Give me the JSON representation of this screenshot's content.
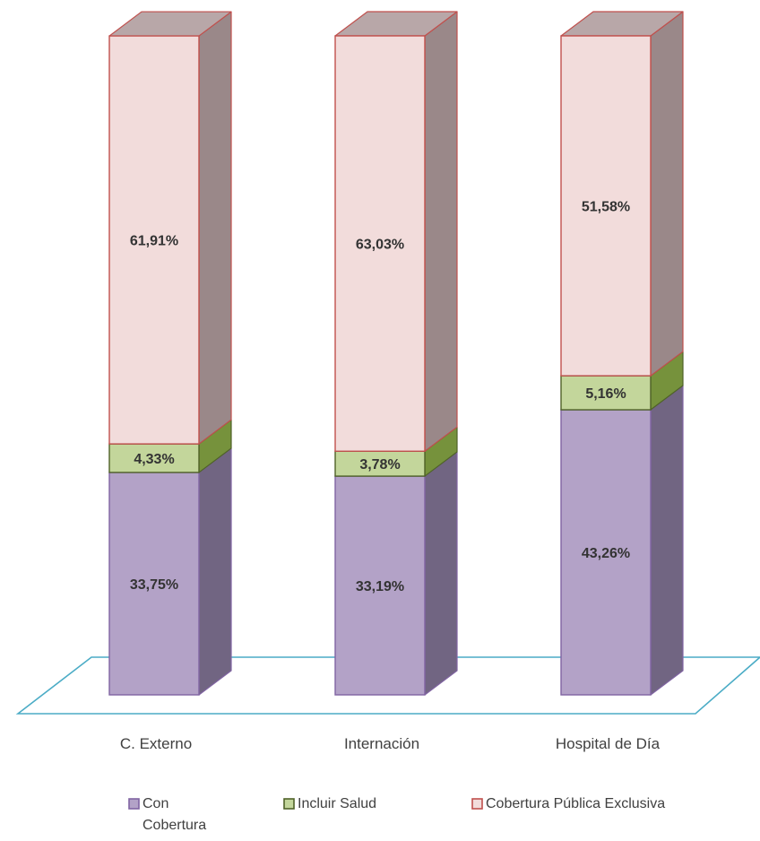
{
  "chart_data": {
    "type": "bar",
    "stacked": true,
    "three_d": true,
    "categories": [
      "C. Externo",
      "Internación",
      "Hospital de Día"
    ],
    "series": [
      {
        "name": "Con Cobertura",
        "values": [
          33.75,
          33.19,
          43.26
        ],
        "labels": [
          "33,75%",
          "33,19%",
          "43,26%"
        ],
        "color": "#b3a2c7",
        "side_color": "#716582",
        "top_color": "#8f819f",
        "stroke": "#8064a2"
      },
      {
        "name": "Incluir Salud",
        "values": [
          4.33,
          3.78,
          5.16
        ],
        "labels": [
          "4,33%",
          "3,78%",
          "5,16%"
        ],
        "color": "#c3d69b",
        "side_color": "#76923c",
        "top_color": "#9bbb59",
        "stroke": "#4f6228"
      },
      {
        "name": "Cobertura Pública Exclusiva",
        "values": [
          61.91,
          63.03,
          51.58
        ],
        "labels": [
          "61,91%",
          "63,03%",
          "51,58%"
        ],
        "color": "#f2dcdb",
        "side_color": "#9a8889",
        "top_color": "#b8a7a8",
        "stroke": "#c0504d"
      }
    ],
    "ylim": [
      0,
      100
    ],
    "floor_color": "#4bacc6",
    "legend_position": "bottom",
    "grid": false,
    "title": "",
    "xlabel": "",
    "ylabel": ""
  }
}
